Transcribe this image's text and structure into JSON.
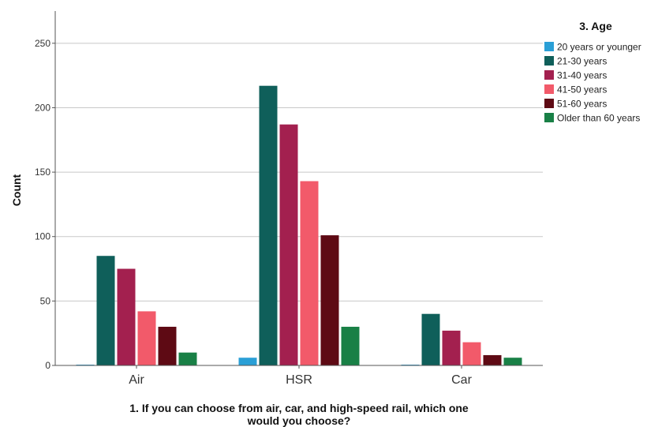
{
  "chart_data": {
    "type": "bar",
    "title": "",
    "xlabel": "1. If you can choose from air, car, and high-speed rail, which one would you choose?",
    "xlabel_lines": [
      "1. If you can choose from air, car, and high-speed rail, which one",
      "would you choose?"
    ],
    "ylabel": "Count",
    "ylim": [
      0,
      275
    ],
    "yticks": [
      0,
      50,
      100,
      150,
      200,
      250
    ],
    "grid": true,
    "legend_title": "3. Age",
    "legend_position": "right",
    "categories": [
      "Air",
      "HSR",
      "Car"
    ],
    "series": [
      {
        "name": "20 years or younger",
        "color": "#2a9fd6",
        "values": [
          0,
          6,
          0
        ]
      },
      {
        "name": "21-30 years",
        "color": "#0f5f5a",
        "values": [
          85,
          217,
          40
        ]
      },
      {
        "name": "31-40 years",
        "color": "#a3204f",
        "values": [
          75,
          187,
          27
        ]
      },
      {
        "name": "41-50 years",
        "color": "#f25a6a",
        "values": [
          42,
          143,
          18
        ]
      },
      {
        "name": "51-60 years",
        "color": "#5e0a14",
        "values": [
          30,
          101,
          8
        ]
      },
      {
        "name": "Older than 60 years",
        "color": "#198046",
        "values": [
          10,
          30,
          6
        ]
      }
    ]
  }
}
